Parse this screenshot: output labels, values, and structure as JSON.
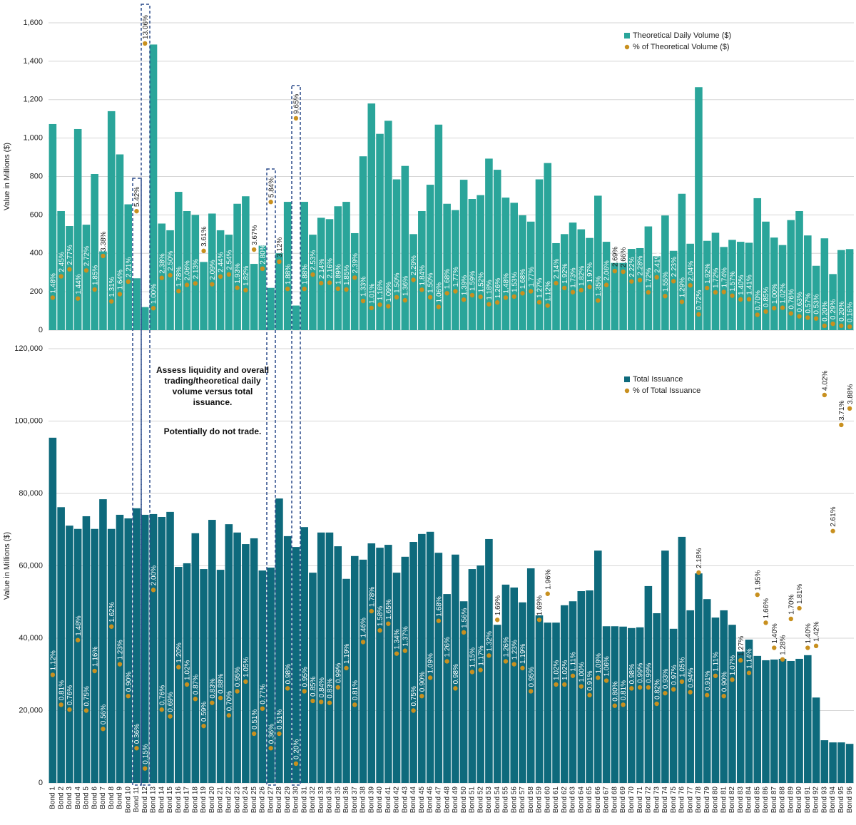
{
  "chart_data": [
    {
      "type": "bar",
      "y_label": "Value in Millions ($)",
      "ylim": [
        0,
        1600
      ],
      "yticks": [
        0,
        200,
        400,
        600,
        800,
        {
          "value": 1000,
          "label": "1,000"
        },
        {
          "value": 1200,
          "label": "1,200"
        },
        {
          "value": 1400,
          "label": "1,400"
        },
        {
          "value": 1600,
          "label": "1,600"
        }
      ],
      "y2lim": [
        0,
        14
      ],
      "grid": true,
      "series": [
        {
          "name": "Theoretical Daily Volume ($)",
          "color": "#2aa59a",
          "values": [
            1073,
            620,
            542,
            1047,
            549,
            813,
            410,
            1140,
            915,
            655,
            270,
            120,
            1487,
            555,
            520,
            720,
            620,
            600,
            355,
            607,
            520,
            497,
            658,
            697,
            345,
            440,
            220,
            400,
            668,
            128,
            668,
            497,
            585,
            578,
            645,
            668,
            505,
            905,
            1180,
            1022,
            1090,
            785,
            855,
            500,
            620,
            757,
            1070,
            658,
            625,
            783,
            683,
            703,
            893,
            835,
            690,
            663,
            598,
            565,
            785,
            870,
            453,
            500,
            560,
            525,
            480,
            700,
            460,
            350,
            350,
            423,
            427,
            540,
            385,
            597,
            413,
            710,
            450,
            1265,
            465,
            507,
            433,
            470,
            460,
            455,
            687,
            565,
            482,
            443,
            573,
            620,
            493,
            335,
            478,
            292,
            417,
            422
          ]
        },
        {
          "name": "% of Theoretical Volume ($)",
          "color": "#c8901f",
          "type": "scatter",
          "axis": "y2",
          "values": [
            1.48,
            2.45,
            2.77,
            1.44,
            2.72,
            1.85,
            3.38,
            1.31,
            1.64,
            2.21,
            5.42,
            13.06,
            1.0,
            2.38,
            2.5,
            1.78,
            2.06,
            2.13,
            3.61,
            2.09,
            2.44,
            2.54,
            1.93,
            1.82,
            3.67,
            2.8,
            5.84,
            3.12,
            1.88,
            9.65,
            1.88,
            2.53,
            2.14,
            2.16,
            1.89,
            1.85,
            2.39,
            1.33,
            1.01,
            1.16,
            1.09,
            1.5,
            1.36,
            2.29,
            1.84,
            1.5,
            1.06,
            1.68,
            1.77,
            1.39,
            1.59,
            1.52,
            1.18,
            1.26,
            1.48,
            1.53,
            1.68,
            1.77,
            1.27,
            1.12,
            2.14,
            1.92,
            1.73,
            1.82,
            1.97,
            1.35,
            2.06,
            2.69,
            2.66,
            2.22,
            2.28,
            1.72,
            2.41,
            1.55,
            2.23,
            1.29,
            2.04,
            0.72,
            1.92,
            1.72,
            1.74,
            1.57,
            1.4,
            1.41,
            0.7,
            0.85,
            1.0,
            1.02,
            0.76,
            0.63,
            0.57,
            0.53,
            0.2,
            0.29,
            0.2,
            0.16
          ],
          "value_labels": [
            "1.48%",
            "2.45%",
            "2.77%",
            "1.44%",
            "2.72%",
            "1.85%",
            "3.38%",
            "1.31%",
            "1.64%",
            "2.21%",
            "5.42%",
            "13.06%",
            "1.00%",
            "2.38%",
            "2.50%",
            "1.78%",
            "2.06%",
            "2.13%",
            "3.61%",
            "2.09%",
            "2.44%",
            "2.54%",
            "1.93%",
            "1.82%",
            "3.67%",
            "2.80%",
            "5.84%",
            "3.12%",
            "1.88%",
            "9.65%",
            "1.88%",
            "2.53%",
            "2.14%",
            "2.16%",
            "1.89%",
            "1.85%",
            "2.39%",
            "1.33%",
            "1.01%",
            "1.16%",
            "1.09%",
            "1.50%",
            "1.36%",
            "2.29%",
            "1.84%",
            "1.50%",
            "1.06%",
            "1.68%",
            "1.77%",
            "1.39%",
            "1.59%",
            "1.52%",
            "1.18%",
            "1.26%",
            "1.48%",
            "1.53%",
            "1.68%",
            "1.77%",
            "1.27%",
            "1.12%",
            "2.14%",
            "1.92%",
            "1.73%",
            "1.82%",
            "1.97%",
            "1.35%",
            "2.06%",
            "2.69%",
            "2.66%",
            "2.22%",
            "2.28%",
            "1.72%",
            "2.41%",
            "1.55%",
            "2.23%",
            "1.29%",
            "2.04%",
            "0.72%",
            "1.92%",
            "1.72%",
            "1.74%",
            "1.57%",
            "1.40%",
            "1.41%",
            "0.70%",
            "0.85%",
            "1.00%",
            "1.02%",
            "0.76%",
            "0.63%",
            "0.57%",
            "0.53%",
            "0.20%",
            "0.29%",
            "0.20%",
            "0.16%"
          ]
        }
      ]
    },
    {
      "type": "bar",
      "y_label": "Value in Millions ($)",
      "annotations": [
        "Assess liquidity and overall trading/theoretical daily volume versus total issuance.",
        "Potentially do not trade."
      ],
      "categories": [
        "Bond 1",
        "Bond 2",
        "Bond 3",
        "Bond 4",
        "Bond 5",
        "Bond 6",
        "Bond 7",
        "Bond 8",
        "Bond 9",
        "Bond 10",
        "Bond 11",
        "Bond 12",
        "Bond 13",
        "Bond 14",
        "Bond 15",
        "Bond 16",
        "Bond 17",
        "Bond 18",
        "Bond 19",
        "Bond 20",
        "Bond 21",
        "Bond 22",
        "Bond 23",
        "Bond 24",
        "Bond 25",
        "Bond 26",
        "Bond 27",
        "Bond 28",
        "Bond 29",
        "Bond 30",
        "Bond 31",
        "Bond 32",
        "Bond 33",
        "Bond 34",
        "Bond 35",
        "Bond 36",
        "Bond 37",
        "Bond 38",
        "Bond 39",
        "Bond 40",
        "Bond 41",
        "Bond 42",
        "Bond 43",
        "Bond 44",
        "Bond 45",
        "Bond 46",
        "Bond 47",
        "Bond 48",
        "Bond 49",
        "Bond 50",
        "Bond 51",
        "Bond 52",
        "Bond 53",
        "Bond 54",
        "Bond 55",
        "Bond 56",
        "Bond 57",
        "Bond 58",
        "Bond 59",
        "Bond 60",
        "Bond 61",
        "Bond 62",
        "Bond 63",
        "Bond 64",
        "Bond 65",
        "Bond 66",
        "Bond 67",
        "Bond 68",
        "Bond 69",
        "Bond 70",
        "Bond 71",
        "Bond 72",
        "Bond 73",
        "Bond 74",
        "Bond 75",
        "Bond 76",
        "Bond 77",
        "Bond 78",
        "Bond 79",
        "Bond 80",
        "Bond 81",
        "Bond 82",
        "Bond 83",
        "Bond 84",
        "Bond 85",
        "Bond 86",
        "Bond 87",
        "Bond 88",
        "Bond 89",
        "Bond 90",
        "Bond 91",
        "Bond 92",
        "Bond 93",
        "Bond 94",
        "Bond 95",
        "Bond 96"
      ],
      "ylim": [
        0,
        120000
      ],
      "yticks": [
        0,
        {
          "value": 20000,
          "label": "20,000"
        },
        {
          "value": 40000,
          "label": "40,000"
        },
        {
          "value": 60000,
          "label": "60,000"
        },
        {
          "value": 80000,
          "label": "80,000"
        },
        {
          "value": 100000,
          "label": "100,000"
        },
        {
          "value": 120000,
          "label": "120,000"
        }
      ],
      "y2lim": [
        0,
        4.5
      ],
      "grid": true,
      "series": [
        {
          "name": "Total Issuance",
          "color": "#0e6a7c",
          "values": [
            95400,
            76200,
            71100,
            70200,
            73700,
            70200,
            78400,
            70200,
            74100,
            73100,
            75900,
            74100,
            74300,
            73500,
            74900,
            59700,
            60700,
            69000,
            59100,
            72700,
            58900,
            71500,
            69200,
            66000,
            67600,
            58700,
            59500,
            78600,
            68200,
            65200,
            70700,
            58100,
            69200,
            69200,
            65400,
            56400,
            62700,
            61700,
            66200,
            65000,
            65800,
            58100,
            62500,
            66600,
            68800,
            69400,
            63600,
            52200,
            63100,
            50200,
            59100,
            60100,
            67400,
            43700,
            54800,
            54000,
            49900,
            59300,
            46300,
            44300,
            44300,
            49100,
            50200,
            53000,
            53200,
            64200,
            43300,
            43300,
            43200,
            42800,
            43000,
            54400,
            46900,
            64200,
            42600,
            68000,
            47700,
            57900,
            50800,
            45700,
            47700,
            43700,
            36300,
            39600,
            35100,
            33900,
            34100,
            34300,
            33700,
            34300,
            35300,
            23600,
            11800,
            11200,
            11200,
            10800
          ]
        },
        {
          "name": "% of Total Issuance",
          "color": "#c8901f",
          "type": "scatter",
          "axis": "y2",
          "values": [
            1.12,
            0.81,
            0.76,
            1.48,
            0.75,
            1.16,
            0.56,
            1.62,
            1.23,
            0.9,
            0.36,
            0.15,
            2.0,
            0.76,
            0.69,
            1.2,
            1.02,
            0.87,
            0.59,
            0.83,
            0.88,
            0.7,
            0.95,
            1.05,
            0.51,
            0.77,
            0.36,
            0.51,
            0.98,
            0.2,
            0.95,
            0.85,
            0.84,
            0.83,
            0.99,
            1.19,
            0.81,
            1.46,
            1.78,
            1.58,
            1.65,
            1.34,
            1.37,
            0.75,
            0.9,
            1.09,
            1.68,
            1.26,
            0.98,
            1.56,
            1.15,
            1.17,
            1.32,
            1.69,
            1.26,
            1.23,
            1.19,
            0.95,
            1.69,
            1.96,
            1.02,
            1.02,
            1.11,
            1.0,
            0.91,
            1.09,
            1.06,
            0.8,
            0.81,
            0.98,
            0.99,
            0.99,
            0.82,
            0.93,
            0.97,
            1.05,
            0.94,
            2.18,
            0.91,
            1.11,
            0.9,
            1.07,
            1.27,
            1.14,
            1.95,
            1.66,
            1.4,
            1.28,
            1.7,
            1.81,
            1.4,
            1.42,
            4.02,
            2.61,
            3.71,
            3.88
          ],
          "value_labels": [
            "1.12%",
            "0.81%",
            "0.76%",
            "1.48%",
            "0.75%",
            "1.16%",
            "0.56%",
            "1.62%",
            "1.23%",
            "0.90%",
            "0.36%",
            "0.15%",
            "2.00%",
            "0.76%",
            "0.69%",
            "1.20%",
            "1.02%",
            "0.87%",
            "0.59%",
            "0.83%",
            "0.88%",
            "0.70%",
            "0.95%",
            "1.05%",
            "0.51%",
            "0.77%",
            "0.36%",
            "0.51%",
            "0.98%",
            "0.20%",
            "0.95%",
            "0.85%",
            "0.84%",
            "0.83%",
            "0.99%",
            "1.19%",
            "0.81%",
            "1.46%",
            "1.78%",
            "1.58%",
            "1.65%",
            "1.34%",
            "1.37%",
            "0.75%",
            "0.90%",
            "1.09%",
            "1.68%",
            "1.26%",
            "0.98%",
            "1.56%",
            "1.15%",
            "1.17%",
            "1.32%",
            "1.69%",
            "1.26%",
            "1.23%",
            "1.19%",
            "0.95%",
            "1.69%",
            "1.96%",
            "1.02%",
            "1.02%",
            "1.11%",
            "1.00%",
            "0.91%",
            "1.09%",
            "1.06%",
            "0.80%",
            "0.81%",
            "0.98%",
            "0.99%",
            "0.99%",
            "0.82%",
            "0.93%",
            "0.97%",
            "1.05%",
            "0.94%",
            "2.18%",
            "0.91%",
            "1.11%",
            "0.90%",
            "1.07%",
            "1.27%",
            "1.14%",
            "1.95%",
            "1.66%",
            "1.40%",
            "1.28%",
            "1.70%",
            "1.81%",
            "1.40%",
            "1.42%",
            "4.02%",
            "2.61%",
            "3.71%",
            "3.88%"
          ]
        }
      ]
    }
  ]
}
